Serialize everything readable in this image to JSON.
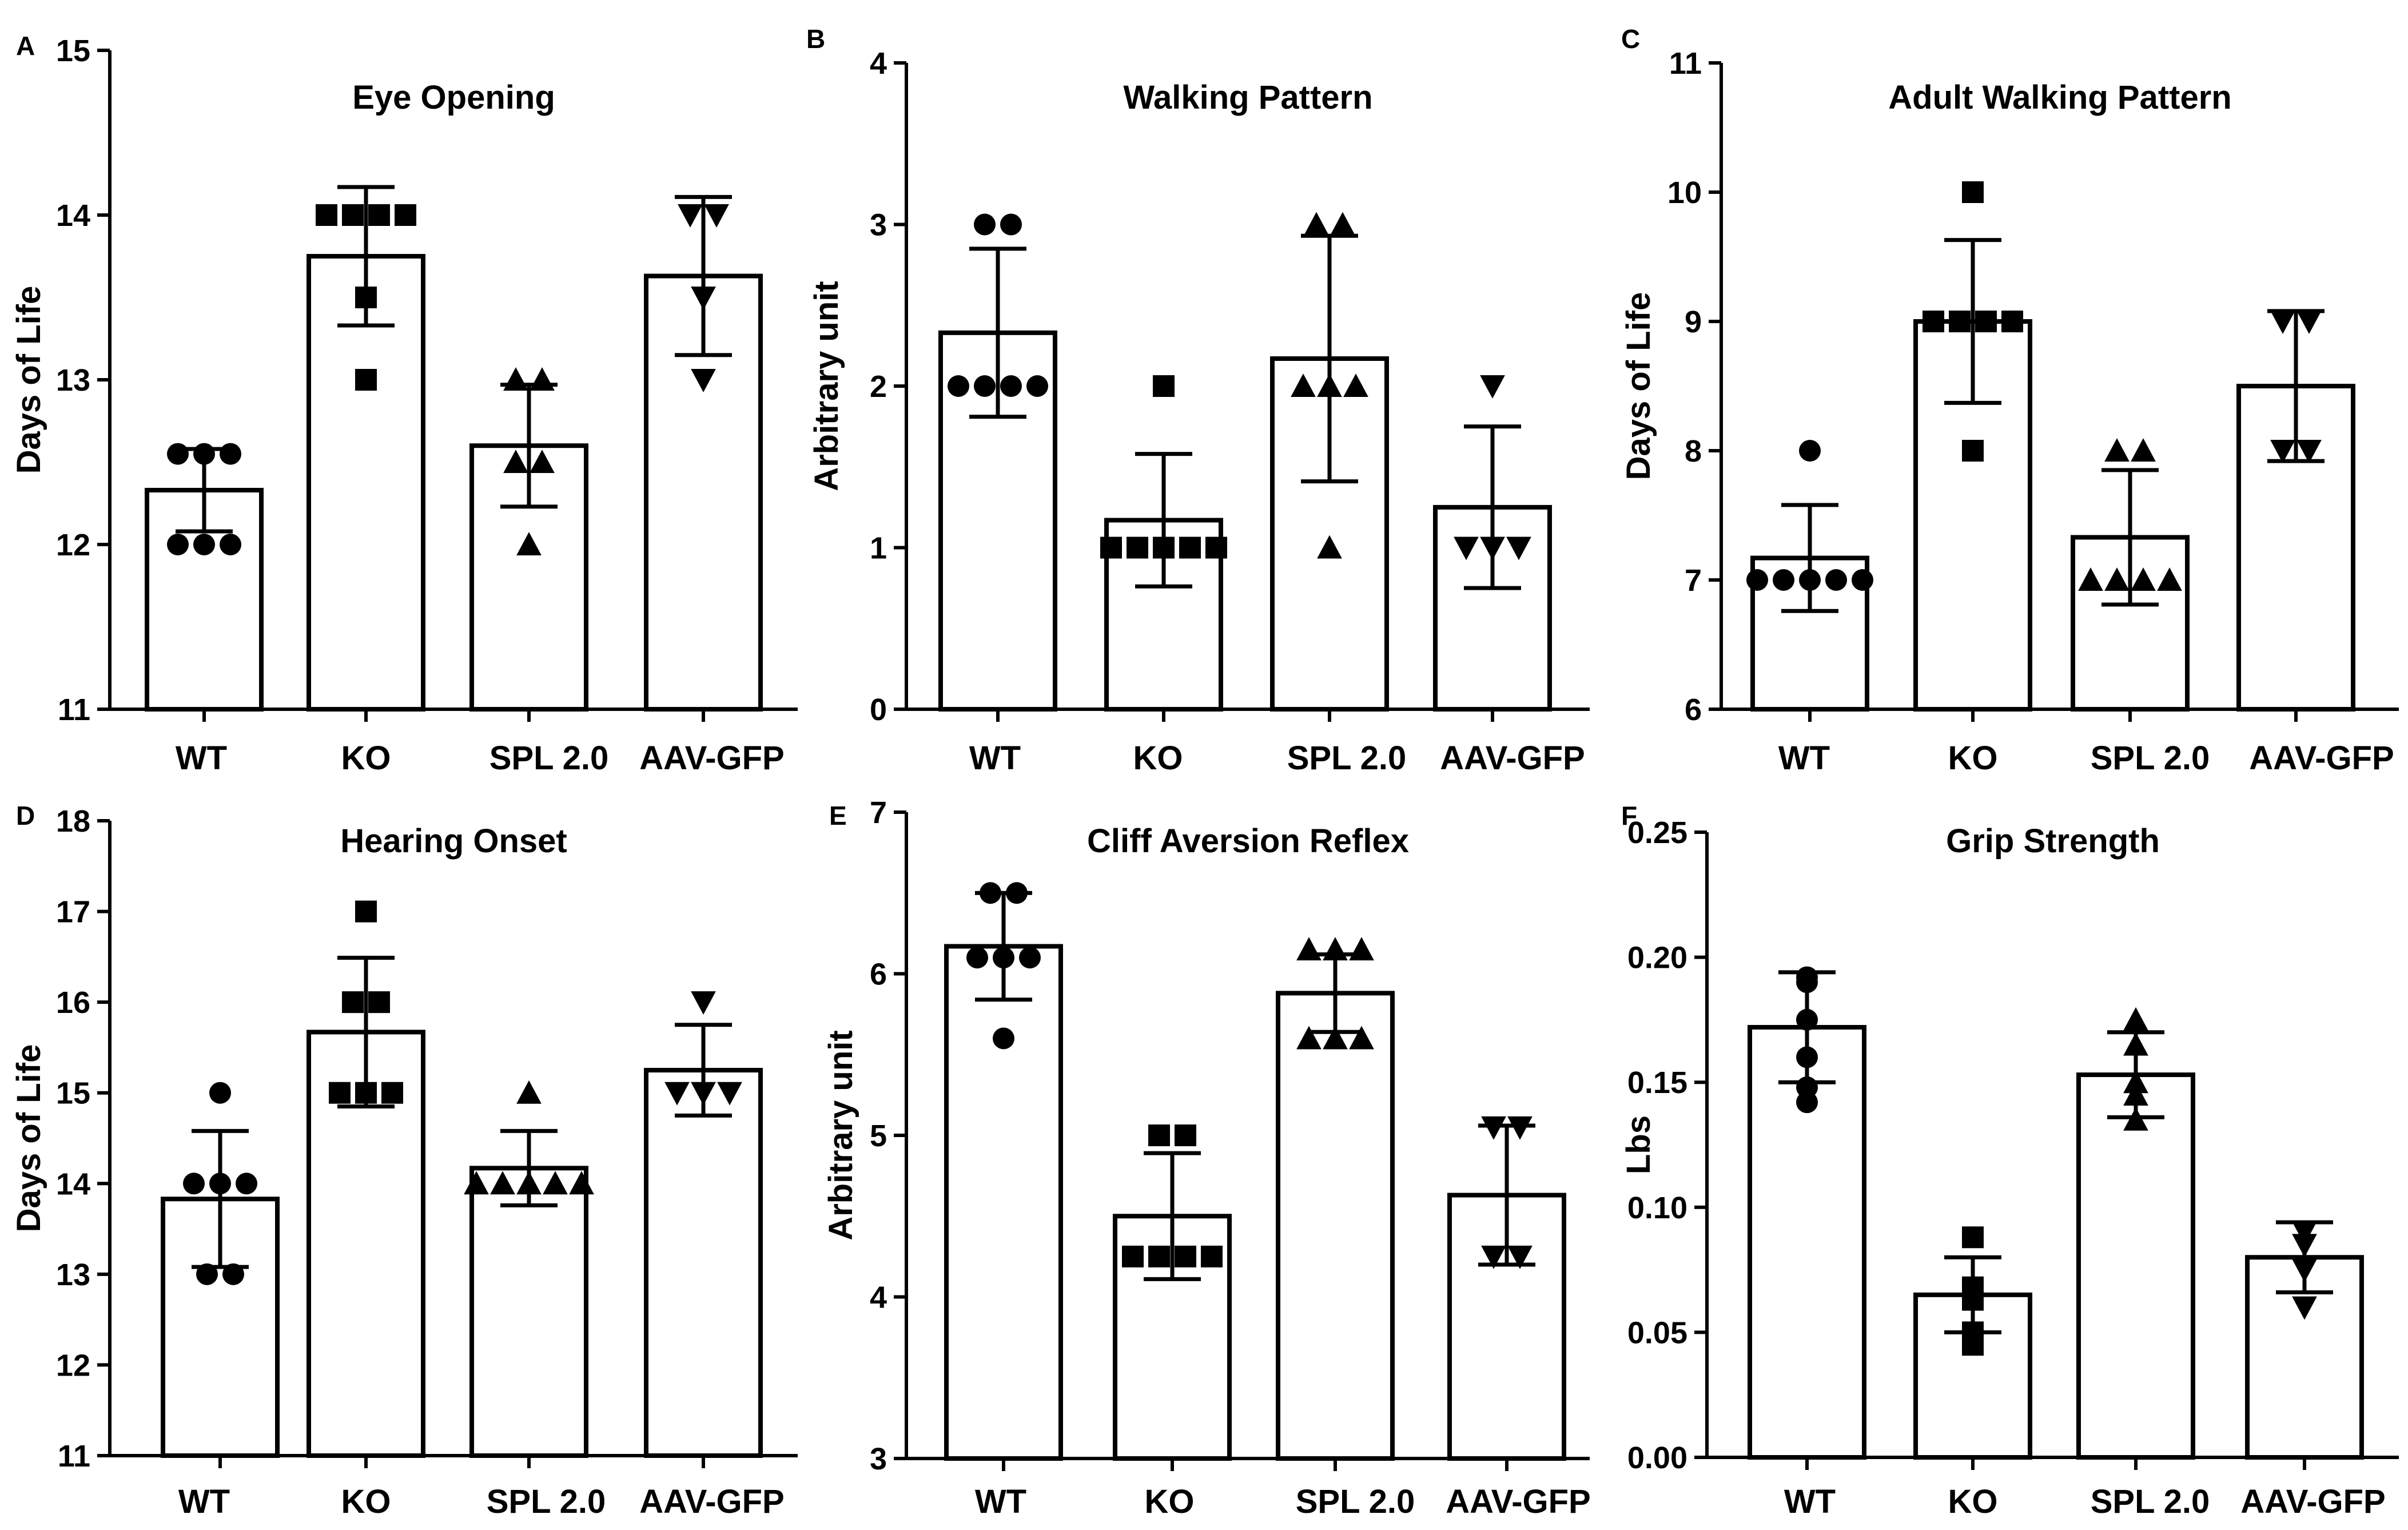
{
  "chart_data": [
    {
      "panel": "A",
      "type": "bar",
      "title": "Eye Opening",
      "ylabel": "Days of Life",
      "ylim": [
        11,
        15
      ],
      "yticks": [
        "11",
        "12",
        "13",
        "14",
        "15"
      ],
      "categories": [
        "WT",
        "KO",
        "SPL 2.0",
        "AAV-GFP"
      ],
      "means": [
        12.33,
        13.75,
        12.6,
        13.63
      ],
      "sd": [
        0.25,
        0.42,
        0.37,
        0.48
      ],
      "markers": [
        "circle",
        "square",
        "triangle-up",
        "triangle-down"
      ],
      "points": [
        [
          12.55,
          12.55,
          12.55,
          12.0,
          12.0,
          12.0
        ],
        [
          14.0,
          14.0,
          14.0,
          14.0,
          13.5,
          13.0
        ],
        [
          13.0,
          13.0,
          12.5,
          12.5,
          12.0
        ],
        [
          14.0,
          14.0,
          13.5,
          13.0
        ]
      ]
    },
    {
      "panel": "B",
      "type": "bar",
      "title": "Walking Pattern",
      "ylabel": "Arbitrary unit",
      "ylim": [
        0,
        4
      ],
      "yticks": [
        "0",
        "1",
        "2",
        "3",
        "4"
      ],
      "categories": [
        "WT",
        "KO",
        "SPL 2.0",
        "AAV-GFP"
      ],
      "means": [
        2.33,
        1.17,
        2.17,
        1.25
      ],
      "sd": [
        0.52,
        0.41,
        0.76,
        0.5
      ],
      "markers": [
        "circle",
        "square",
        "triangle-up",
        "triangle-down"
      ],
      "points": [
        [
          3.0,
          3.0,
          2.0,
          2.0,
          2.0,
          2.0
        ],
        [
          2.0,
          1.0,
          1.0,
          1.0,
          1.0,
          1.0
        ],
        [
          3.0,
          3.0,
          2.0,
          2.0,
          2.0,
          1.0
        ],
        [
          2.0,
          1.0,
          1.0,
          1.0
        ]
      ]
    },
    {
      "panel": "C",
      "type": "bar",
      "title": "Adult Walking Pattern",
      "ylabel": "Days of Life",
      "ylim": [
        6,
        11
      ],
      "yticks": [
        "6",
        "7",
        "8",
        "9",
        "10",
        "11"
      ],
      "categories": [
        "WT",
        "KO",
        "SPL 2.0",
        "AAV-GFP"
      ],
      "means": [
        7.17,
        9.0,
        7.33,
        8.5
      ],
      "sd": [
        0.41,
        0.63,
        0.52,
        0.58
      ],
      "markers": [
        "circle",
        "square",
        "triangle-up",
        "triangle-down"
      ],
      "points": [
        [
          8.0,
          7.0,
          7.0,
          7.0,
          7.0,
          7.0
        ],
        [
          10.0,
          9.0,
          9.0,
          9.0,
          9.0,
          8.0
        ],
        [
          8.0,
          8.0,
          7.0,
          7.0,
          7.0,
          7.0
        ],
        [
          9.0,
          9.0,
          8.0,
          8.0
        ]
      ]
    },
    {
      "panel": "D",
      "type": "bar",
      "title": "Hearing Onset",
      "ylabel": "Days of Life",
      "ylim": [
        11,
        18
      ],
      "yticks": [
        "11",
        "12",
        "13",
        "14",
        "15",
        "16",
        "17",
        "18"
      ],
      "categories": [
        "WT",
        "KO",
        "SPL 2.0",
        "AAV-GFP"
      ],
      "means": [
        13.83,
        15.67,
        14.17,
        15.25
      ],
      "sd": [
        0.75,
        0.82,
        0.41,
        0.5
      ],
      "markers": [
        "circle",
        "square",
        "triangle-up",
        "triangle-down"
      ],
      "points": [
        [
          15.0,
          14.0,
          14.0,
          14.0,
          13.0,
          13.0
        ],
        [
          17.0,
          16.0,
          16.0,
          15.0,
          15.0,
          15.0
        ],
        [
          15.0,
          14.0,
          14.0,
          14.0,
          14.0,
          14.0
        ],
        [
          16.0,
          15.0,
          15.0,
          15.0
        ]
      ]
    },
    {
      "panel": "E",
      "type": "bar",
      "title": "Cliff Aversion Reflex",
      "ylabel": "Arbitrary unit",
      "ylim": [
        3,
        7
      ],
      "yticks": [
        "3",
        "4",
        "5",
        "6",
        "7"
      ],
      "categories": [
        "WT",
        "KO",
        "SPL 2.0",
        "AAV-GFP"
      ],
      "means": [
        6.17,
        4.5,
        5.88,
        4.63
      ],
      "sd": [
        0.33,
        0.39,
        0.24,
        0.43
      ],
      "markers": [
        "circle",
        "square",
        "triangle-up",
        "triangle-down"
      ],
      "points": [
        [
          6.5,
          6.5,
          6.1,
          6.1,
          6.1,
          5.6
        ],
        [
          5.0,
          5.0,
          4.25,
          4.25,
          4.25,
          4.25
        ],
        [
          6.15,
          6.15,
          6.15,
          5.6,
          5.6,
          5.6
        ],
        [
          5.05,
          5.05,
          4.25,
          4.25
        ]
      ]
    },
    {
      "panel": "F",
      "type": "bar",
      "title": "Grip Strength",
      "ylabel": "Lbs",
      "ylim": [
        0,
        0.25
      ],
      "yticks": [
        "0.00",
        "0.05",
        "0.10",
        "0.15",
        "0.20",
        "0.25"
      ],
      "categories": [
        "WT",
        "KO",
        "SPL 2.0",
        "AAV-GFP"
      ],
      "means": [
        0.172,
        0.065,
        0.153,
        0.08
      ],
      "sd": [
        0.022,
        0.015,
        0.017,
        0.014
      ],
      "markers": [
        "circle",
        "square",
        "triangle-up",
        "triangle-down"
      ],
      "points": [
        [
          0.192,
          0.19,
          0.175,
          0.16,
          0.148,
          0.142
        ],
        [
          0.088,
          0.068,
          0.065,
          0.063,
          0.05,
          0.045
        ],
        [
          0.175,
          0.165,
          0.15,
          0.145,
          0.135
        ],
        [
          0.09,
          0.085,
          0.075,
          0.06
        ]
      ]
    }
  ]
}
